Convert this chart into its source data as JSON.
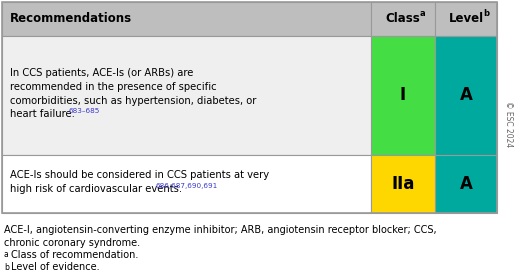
{
  "header_text": "Recommendations",
  "col1_header": "Class",
  "col1_sup": "a",
  "col2_header": "Level",
  "col2_sup": "b",
  "rows": [
    {
      "main_text": "In CCS patients, ACE-Is (or ARBs) are\nrecommended in the presence of specific\ncomorbidities, such as hypertension, diabetes, or\nheart failure.",
      "sup_text": "683–685",
      "sup_color": "#3a3acc",
      "class_label": "I",
      "level_label": "A",
      "class_color": "#44dd44",
      "level_color": "#00a99d",
      "row_bg": "#efefef"
    },
    {
      "main_text": "ACE-Is should be considered in CCS patients at very\nhigh risk of cardiovascular events.",
      "sup_text": "686,687,690,691",
      "sup_color": "#3a3acc",
      "class_label": "IIa",
      "level_label": "A",
      "class_color": "#ffd700",
      "level_color": "#00a99d",
      "row_bg": "#ffffff"
    }
  ],
  "footnote_lines": [
    {
      "text": "ACE-I, angiotensin-converting enzyme inhibitor; ARB, angiotensin receptor blocker; CCS,",
      "indent": false,
      "sup": ""
    },
    {
      "text": "chronic coronary syndrome.",
      "indent": false,
      "sup": ""
    },
    {
      "text": "Class of recommendation.",
      "indent": true,
      "sup": "a"
    },
    {
      "text": "Level of evidence.",
      "indent": true,
      "sup": "b"
    }
  ],
  "header_bg": "#bebebe",
  "border_color": "#999999",
  "esc_text": "© ESC 2024",
  "fig_bg": "#ffffff",
  "text_color": "#000000"
}
